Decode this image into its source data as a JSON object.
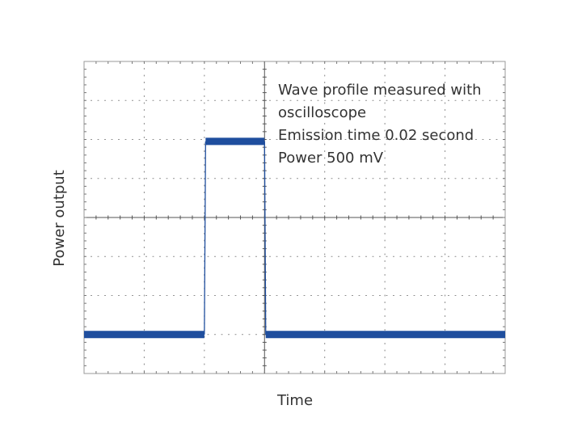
{
  "chart_data": {
    "type": "line",
    "title": "",
    "xlabel": "Time",
    "ylabel": "Power output",
    "grid": true,
    "divisions": {
      "x": 7,
      "y": 8
    },
    "xlim": [
      0,
      7
    ],
    "ylim": [
      0,
      8
    ],
    "annotations": [
      "Wave profile measured with",
      "oscilloscope",
      "Emission time 0.02 second",
      "Power 500 mV"
    ],
    "series": [
      {
        "color": "#1f4e9e",
        "x": [
          0,
          2.0,
          2.02,
          3.0,
          3.02,
          7
        ],
        "y": [
          1.0,
          1.0,
          5.95,
          5.95,
          1.0,
          1.0
        ]
      }
    ]
  }
}
